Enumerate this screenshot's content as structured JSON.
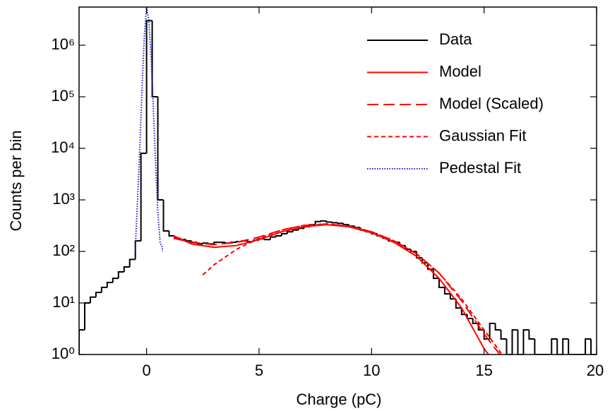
{
  "chart_data": {
    "type": "histogram",
    "x_label": "Charge (pC)",
    "y_label": "Counts per bin",
    "xlim": [
      -3,
      20
    ],
    "xticks": [
      0,
      5,
      10,
      15,
      20
    ],
    "ylim": [
      1,
      5500000
    ],
    "log_y": true,
    "yticks": [
      {
        "value": 1,
        "label": "10⁰"
      },
      {
        "value": 10,
        "label": "10¹"
      },
      {
        "value": 100,
        "label": "10²"
      },
      {
        "value": 1000,
        "label": "10³"
      },
      {
        "value": 10000,
        "label": "10⁴"
      },
      {
        "value": 100000,
        "label": "10⁵"
      },
      {
        "value": 1000000,
        "label": "10⁶"
      }
    ],
    "legend": "upper right",
    "bins": [
      -3,
      -2.75,
      -2.5,
      -2.25,
      -2,
      -1.75,
      -1.5,
      -1.25,
      -1,
      -0.75,
      -0.5,
      -0.25,
      0,
      0.25,
      0.5,
      0.75,
      1,
      1.25,
      1.5,
      1.75,
      2,
      2.25,
      2.5,
      2.75,
      3,
      3.25,
      3.5,
      3.75,
      4,
      4.25,
      4.5,
      4.75,
      5,
      5.25,
      5.5,
      5.75,
      6,
      6.25,
      6.5,
      6.75,
      7,
      7.25,
      7.5,
      7.75,
      8,
      8.25,
      8.5,
      8.75,
      9,
      9.25,
      9.5,
      9.75,
      10,
      10.25,
      10.5,
      10.75,
      11,
      11.25,
      11.5,
      11.75,
      12,
      12.25,
      12.5,
      12.75,
      13,
      13.25,
      13.5,
      13.75,
      14,
      14.25,
      14.5,
      14.75,
      15,
      15.25,
      15.5,
      15.75,
      16,
      16.25,
      16.5,
      16.75,
      17,
      17.25,
      17.5,
      17.75,
      18,
      18.25,
      18.5,
      18.75,
      19,
      19.25,
      19.5,
      19.75,
      20
    ],
    "series": [
      {
        "name": "Data",
        "color": "#000000",
        "line_style": "solid",
        "kind": "histogram",
        "values": [
          3,
          10,
          13,
          16,
          20,
          25,
          30,
          40,
          50,
          70,
          160,
          8000,
          3000000,
          100000,
          1000,
          250,
          200,
          180,
          170,
          160,
          150,
          140,
          145,
          140,
          150,
          150,
          145,
          150,
          155,
          160,
          155,
          165,
          175,
          170,
          190,
          200,
          220,
          240,
          260,
          280,
          300,
          330,
          380,
          390,
          370,
          360,
          350,
          330,
          310,
          290,
          260,
          240,
          220,
          200,
          180,
          160,
          150,
          130,
          110,
          100,
          75,
          60,
          45,
          30,
          20,
          15,
          12,
          8,
          6,
          5,
          4,
          3,
          2,
          4,
          3,
          2,
          1,
          3,
          1,
          3,
          2,
          0,
          0,
          0,
          2,
          0,
          2,
          0,
          0,
          0,
          2,
          0
        ]
      },
      {
        "name": "Model",
        "color": "#ff0000",
        "line_style": "solid",
        "kind": "curve",
        "x": [
          1.2,
          2,
          3,
          4,
          5,
          6,
          7,
          8,
          9,
          10,
          11,
          12,
          13,
          14,
          15,
          15.2
        ],
        "values": [
          200,
          140,
          120,
          130,
          170,
          240,
          300,
          330,
          300,
          230,
          150,
          80,
          30,
          8,
          1.3,
          1
        ]
      },
      {
        "name": "Model (Scaled)",
        "color": "#ff0000",
        "line_style": "long-dash",
        "kind": "curve",
        "x": [
          1.2,
          2,
          3,
          4,
          5,
          6,
          7,
          8,
          9,
          10,
          11,
          12,
          13,
          14,
          15,
          15.7
        ],
        "values": [
          180,
          150,
          135,
          150,
          190,
          260,
          320,
          340,
          310,
          240,
          160,
          90,
          38,
          11,
          2.5,
          1
        ]
      },
      {
        "name": "Gaussian Fit",
        "color": "#ff0000",
        "line_style": "short-dash",
        "kind": "curve",
        "x": [
          2.5,
          3,
          4,
          5,
          6,
          7,
          8,
          9,
          10,
          11,
          12,
          13,
          14,
          15,
          15.8
        ],
        "values": [
          35,
          55,
          110,
          180,
          260,
          320,
          340,
          310,
          240,
          160,
          90,
          38,
          12,
          3,
          1
        ]
      },
      {
        "name": "Pedestal Fit",
        "color": "#1c1cc8",
        "line_style": "dotted",
        "kind": "curve",
        "x": [
          -0.5,
          -0.5,
          -0.4,
          -0.3,
          -0.2,
          -0.1,
          0,
          0.1,
          0.2,
          0.3,
          0.4,
          0.5,
          0.6,
          0.7,
          0.7
        ],
        "values": [
          100,
          120,
          1000,
          10000,
          150000,
          1500000,
          5500000,
          3000000,
          600000,
          60000,
          5000,
          600,
          150,
          120,
          100
        ]
      }
    ]
  }
}
